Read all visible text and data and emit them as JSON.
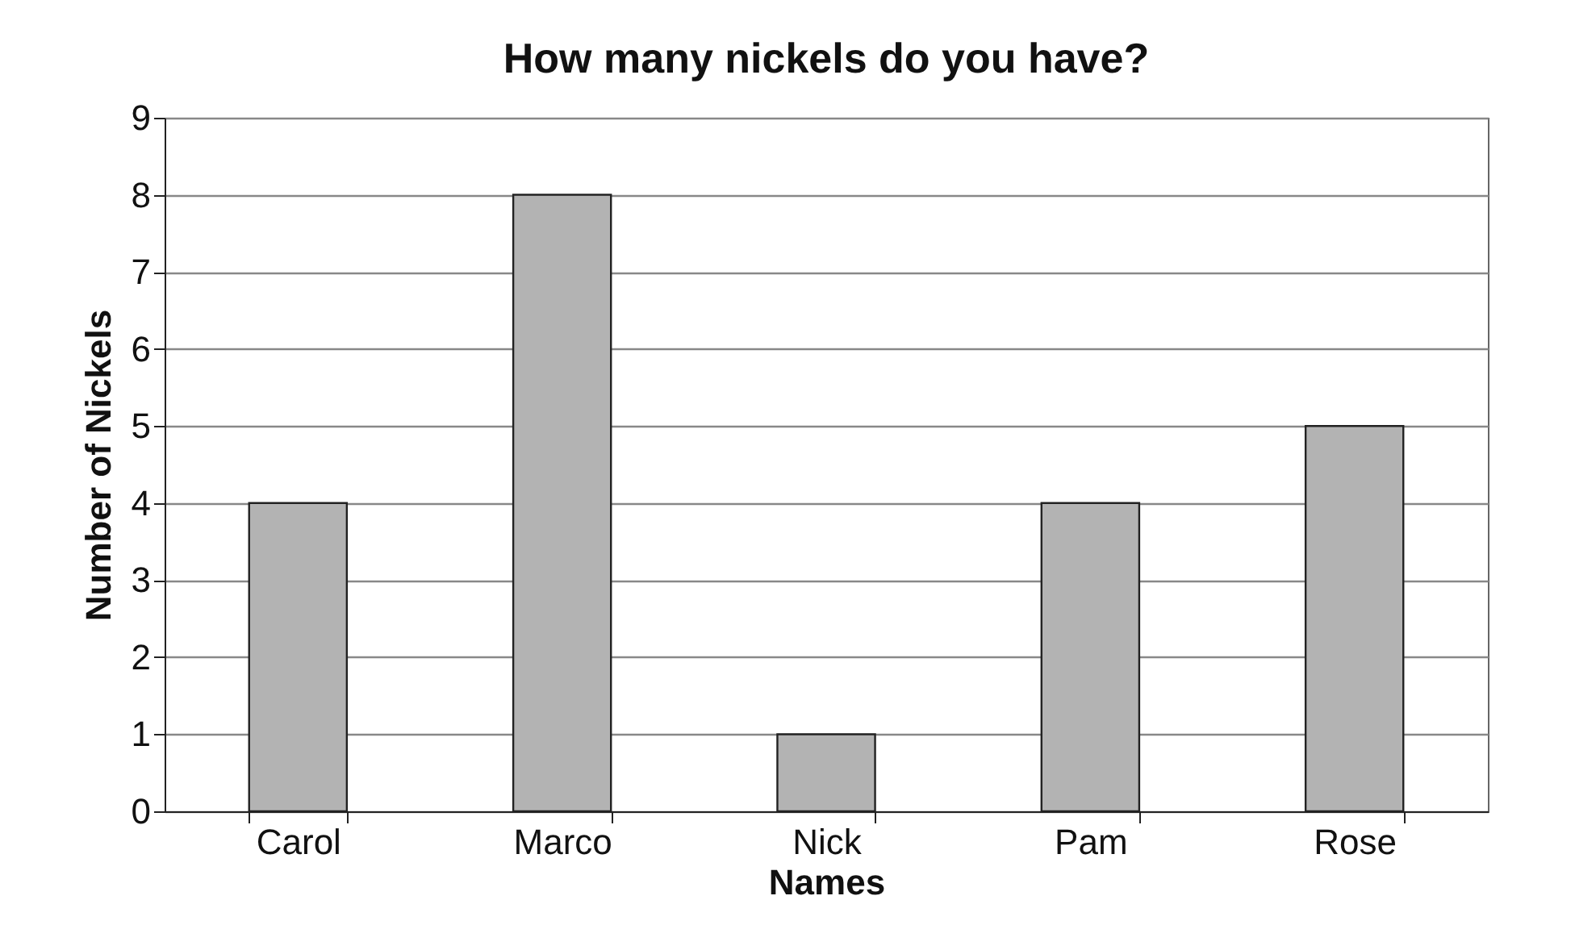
{
  "chart_data": {
    "type": "bar",
    "title": "How many nickels do you have?",
    "xlabel": "Names",
    "ylabel": "Number of Nickels",
    "categories": [
      "Carol",
      "Marco",
      "Nick",
      "Pam",
      "Rose"
    ],
    "values": [
      4,
      8,
      1,
      4,
      5
    ],
    "color": "#b3b3b3",
    "ylim": [
      0,
      9
    ],
    "yticks": [
      0,
      1,
      2,
      3,
      4,
      5,
      6,
      7,
      8,
      9
    ],
    "grid": "y"
  }
}
